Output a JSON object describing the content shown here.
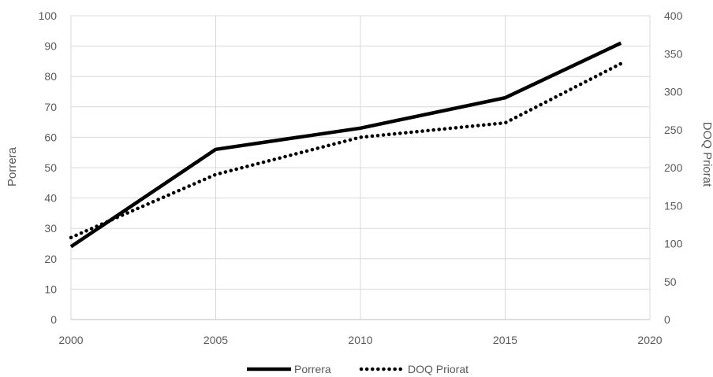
{
  "chart_data": {
    "type": "line",
    "x": [
      2000,
      2005,
      2010,
      2015,
      2019
    ],
    "series": [
      {
        "name": "Porrera",
        "axis": "left",
        "style": "solid",
        "color": "#000000",
        "values": [
          24,
          56,
          63,
          73,
          91
        ]
      },
      {
        "name": "DOQ Priorat",
        "axis": "right",
        "style": "dotted",
        "color": "#000000",
        "values": [
          108,
          191,
          240,
          259,
          337
        ]
      }
    ],
    "xlabel": "",
    "ylabel": "Porrera",
    "y2label": "DOQ Priorat",
    "xlim": [
      2000,
      2020
    ],
    "ylim": [
      0,
      100
    ],
    "y2lim": [
      0,
      400
    ],
    "x_ticks": [
      "2000",
      "2005",
      "2010",
      "2015",
      "2020"
    ],
    "y_ticks": [
      "0",
      "10",
      "20",
      "30",
      "40",
      "50",
      "60",
      "70",
      "80",
      "90",
      "100"
    ],
    "y2_ticks": [
      "0",
      "50",
      "100",
      "150",
      "200",
      "250",
      "300",
      "350",
      "400"
    ],
    "grid": true,
    "legend": "bottom"
  }
}
